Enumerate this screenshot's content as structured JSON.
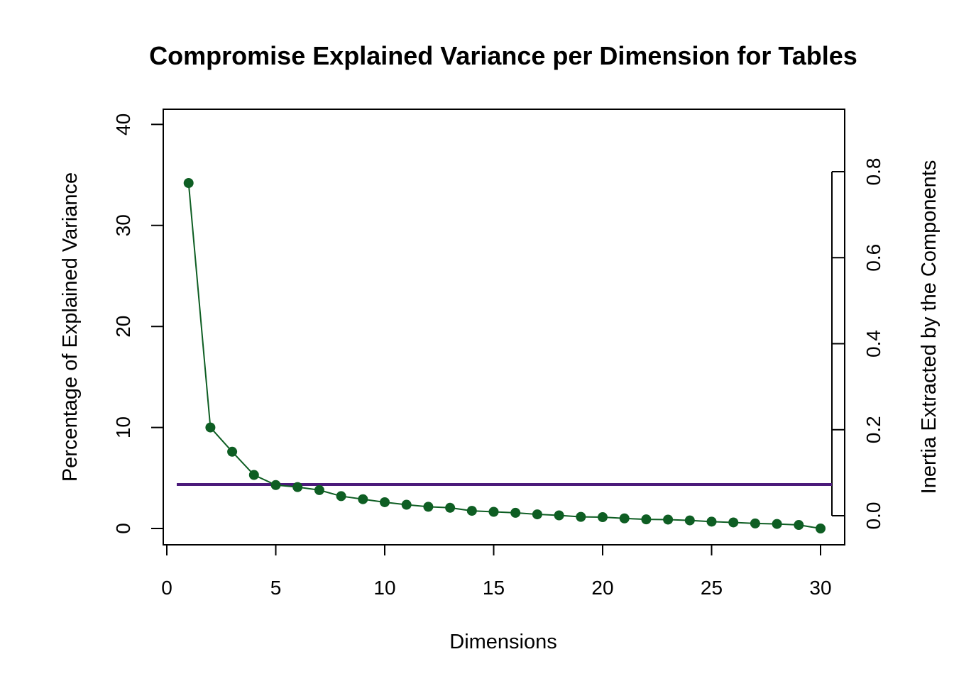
{
  "chart_data": {
    "type": "line",
    "title": "Compromise Explained Variance per Dimension for Tables",
    "xlabel": "Dimensions",
    "ylabel": "Percentage of Explained Variance",
    "y2label": "Inertia Extracted by the Components",
    "xlim": [
      0,
      30
    ],
    "ylim": [
      0,
      40
    ],
    "y2lim": [
      0,
      0.8
    ],
    "x_ticks": [
      0,
      5,
      10,
      15,
      20,
      25,
      30
    ],
    "y_ticks": [
      0,
      10,
      20,
      30,
      40
    ],
    "y2_ticks": [
      "0.0",
      "0.2",
      "0.4",
      "0.6",
      "0.8"
    ],
    "grid": false,
    "series": [
      {
        "color": "#0e5e23",
        "marker": "filled-circle",
        "x": [
          1,
          2,
          3,
          4,
          5,
          6,
          7,
          8,
          9,
          10,
          11,
          12,
          13,
          14,
          15,
          16,
          17,
          18,
          19,
          20,
          21,
          22,
          23,
          24,
          25,
          26,
          27,
          28,
          29,
          30
        ],
        "values": [
          34.2,
          10.0,
          7.6,
          5.3,
          4.3,
          4.1,
          3.8,
          3.2,
          2.9,
          2.6,
          2.35,
          2.15,
          2.05,
          1.75,
          1.65,
          1.55,
          1.4,
          1.3,
          1.15,
          1.12,
          1.0,
          0.9,
          0.88,
          0.8,
          0.68,
          0.6,
          0.5,
          0.45,
          0.35,
          0.0
        ]
      }
    ],
    "reference_line": {
      "y": 4.35,
      "color": "#4b1a7a"
    }
  }
}
